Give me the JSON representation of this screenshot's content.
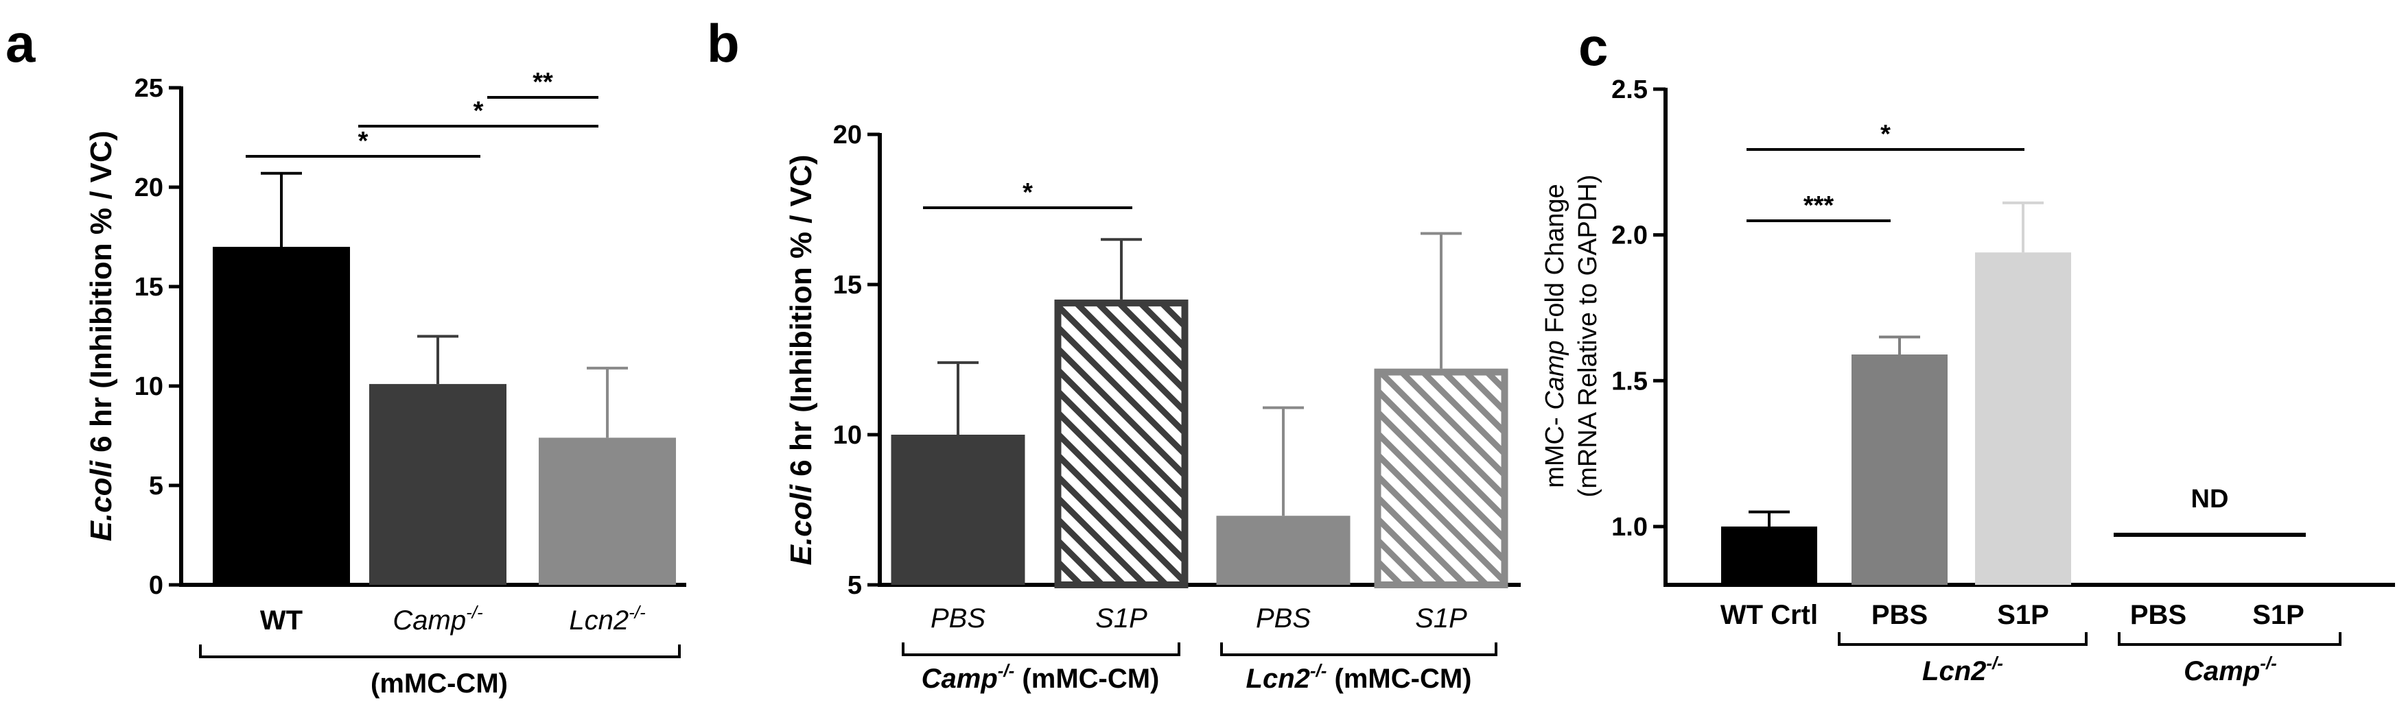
{
  "chart_data": [
    {
      "panel": "a",
      "type": "bar",
      "ylabel_italic": "E.coli",
      "ylabel_rest": " 6 hr (Inhibition % / VC)",
      "ylim": [
        0,
        25
      ],
      "yticks": [
        0,
        5,
        10,
        15,
        20,
        25
      ],
      "yticks_labels": [
        "0",
        "5",
        "10",
        "15",
        "20",
        "25"
      ],
      "categories": [
        {
          "base": "WT",
          "sup": "",
          "italic": false
        },
        {
          "base": "Camp",
          "sup": "-/-",
          "italic": true
        },
        {
          "base": "Lcn2",
          "sup": "-/-",
          "italic": true
        }
      ],
      "values": [
        17.0,
        10.1,
        7.4
      ],
      "errors": [
        3.7,
        2.4,
        3.5
      ],
      "colors": [
        "#000000",
        "#3c3c3c",
        "#8a8a8a"
      ],
      "group_label": "(mMC-CM)",
      "significance": [
        {
          "from": 0,
          "to": 1,
          "label": "*"
        },
        {
          "from": 1,
          "to": 2,
          "label": "*"
        },
        {
          "from": 1.6,
          "to": 2,
          "label": "**"
        }
      ]
    },
    {
      "panel": "b",
      "type": "bar",
      "ylabel_italic": "E.coli",
      "ylabel_rest": " 6 hr (Inhibition % / VC)",
      "ylim": [
        5,
        20
      ],
      "yticks": [
        5,
        10,
        15,
        20
      ],
      "yticks_labels": [
        "5",
        "10",
        "15",
        "20"
      ],
      "categories": [
        "PBS",
        "S1P",
        "PBS",
        "S1P"
      ],
      "values": [
        10.0,
        14.5,
        7.3,
        12.2
      ],
      "errors": [
        2.4,
        2.0,
        3.6,
        4.5
      ],
      "colors": [
        "#3c3c3c",
        "#3c3c3c",
        "#8a8a8a",
        "#8a8a8a"
      ],
      "hatched": [
        false,
        true,
        false,
        true
      ],
      "groups": [
        {
          "base": "Camp",
          "sup": "-/-",
          "rest": " (mMC-CM)"
        },
        {
          "base": "Lcn2",
          "sup": "-/-",
          "rest": " (mMC-CM)"
        }
      ],
      "significance": [
        {
          "from": 0,
          "to": 1,
          "label": "*"
        }
      ]
    },
    {
      "panel": "c",
      "type": "bar",
      "ylabel_pre": "mMC- ",
      "ylabel_italic": "Camp",
      "ylabel_post": " Fold Change",
      "ylabel_line2": "(mRNA Relative to GAPDH)",
      "ylim": [
        0.8,
        2.5
      ],
      "yticks": [
        1.0,
        1.5,
        2.0,
        2.5
      ],
      "yticks_labels": [
        "1.0",
        "1.5",
        "2.0",
        "2.5"
      ],
      "categories": [
        "WT Crtl",
        "PBS",
        "S1P",
        "PBS",
        "S1P"
      ],
      "values": [
        1.0,
        1.59,
        1.94,
        null,
        null
      ],
      "errors": [
        0.05,
        0.06,
        0.17,
        null,
        null
      ],
      "colors": [
        "#000000",
        "#808080",
        "#d4d4d4",
        "#000000",
        "#000000"
      ],
      "not_detected_label": "ND",
      "groups": [
        {
          "base": "Lcn2",
          "sup": "-/-"
        },
        {
          "base": "Camp",
          "sup": "-/-"
        }
      ],
      "significance": [
        {
          "from": 0,
          "to": 1,
          "label": "***"
        },
        {
          "from": 0,
          "to": 2,
          "label": "*"
        }
      ]
    }
  ]
}
